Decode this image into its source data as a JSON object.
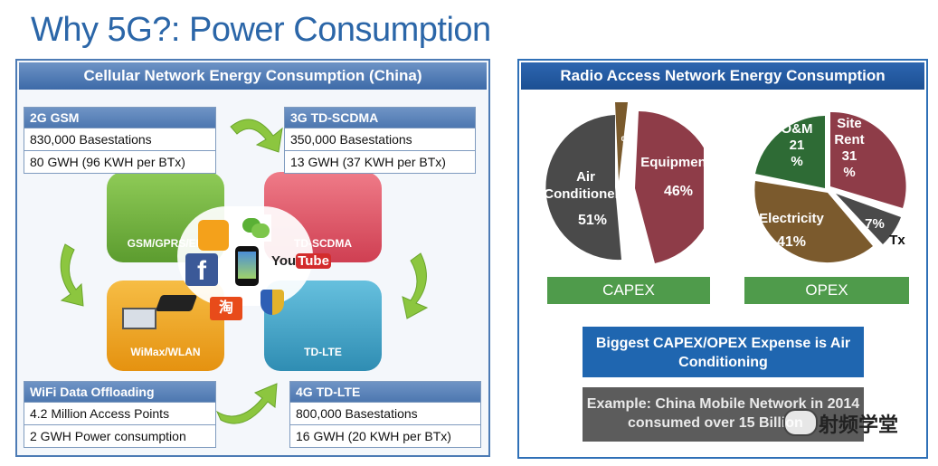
{
  "slide": {
    "title": "Why 5G?: Power Consumption"
  },
  "left_panel": {
    "header": "Cellular Network Energy Consumption (China)",
    "boxes": [
      {
        "title": "2G GSM",
        "lines": [
          "830,000 Basestations",
          "80 GWH (96 KWH per BTx)"
        ]
      },
      {
        "title": "3G TD-SCDMA",
        "lines": [
          "350,000 Basestations",
          "13 GWH (37 KWH per BTx)"
        ]
      },
      {
        "title": "WiFi Data Offloading",
        "lines": [
          "4.2 Million Access Points",
          "2 GWH Power consumption"
        ]
      },
      {
        "title": "4G TD-LTE",
        "lines": [
          "800,000 Basestations",
          "16 GWH (20 KWH per BTx)"
        ]
      }
    ],
    "tiles": {
      "gsm": "GSM/GPRS/ED",
      "tdscdma": "TD-SCDMA",
      "wimax": "WiMax/WLAN",
      "tdlte": "TD-LTE"
    },
    "app_labels": {
      "youtube": "You",
      "youtube2": "Tube",
      "wechat_chars": "淘",
      "facebook": "f"
    },
    "colors": {
      "gsm": "#7ab648",
      "tdscdma": "#e05a6a",
      "wimax": "#f0a21a",
      "tdlte": "#42a6c9",
      "arrow": "#8cc63f"
    }
  },
  "right_panel": {
    "header": "Radio Access Network Energy Consumption",
    "capex": {
      "label": "CAPEX",
      "slices": [
        {
          "name": "Equipment",
          "value": 46,
          "label": "46%",
          "color": "#8e3c48"
        },
        {
          "name": "Air Conditioners",
          "value": 51,
          "label": "51%",
          "color": "#4a4a4a"
        },
        {
          "name": "",
          "value": 3,
          "label": "%",
          "color": "#7a5a2c"
        }
      ],
      "texts": {
        "air": "Air",
        "conditioners": "Conditioners",
        "air_pct": "51%",
        "equipment": "Equipment",
        "equipment_pct": "46%",
        "small_pct": "%"
      }
    },
    "opex": {
      "label": "OPEX",
      "slices": [
        {
          "name": "Site Rent",
          "value": 31,
          "color": "#8e3c48"
        },
        {
          "name": "Tx",
          "value": 7,
          "color": "#4a4a4a"
        },
        {
          "name": "Electricity",
          "value": 41,
          "color": "#7b5a2d"
        },
        {
          "name": "O&M",
          "value": 21,
          "color": "#2e6b35"
        }
      ],
      "texts": {
        "om": "O&M",
        "om_val": "21",
        "om_pct": "%",
        "site": "Site",
        "rent": "Rent",
        "rent_val": "31",
        "rent_pct": "%",
        "tx_pct": "7%",
        "tx": "Tx",
        "electricity": "Electricity",
        "electricity_pct": "41%"
      }
    },
    "callout_blue": {
      "line1": "Biggest CAPEX/OPEX Expense is Air",
      "line2": "Conditioning"
    },
    "callout_gray": {
      "line1": "Example: China Mobile Network in 2014",
      "line2": "consumed over 15 Billion"
    }
  },
  "watermark": {
    "text": "射频学堂"
  }
}
